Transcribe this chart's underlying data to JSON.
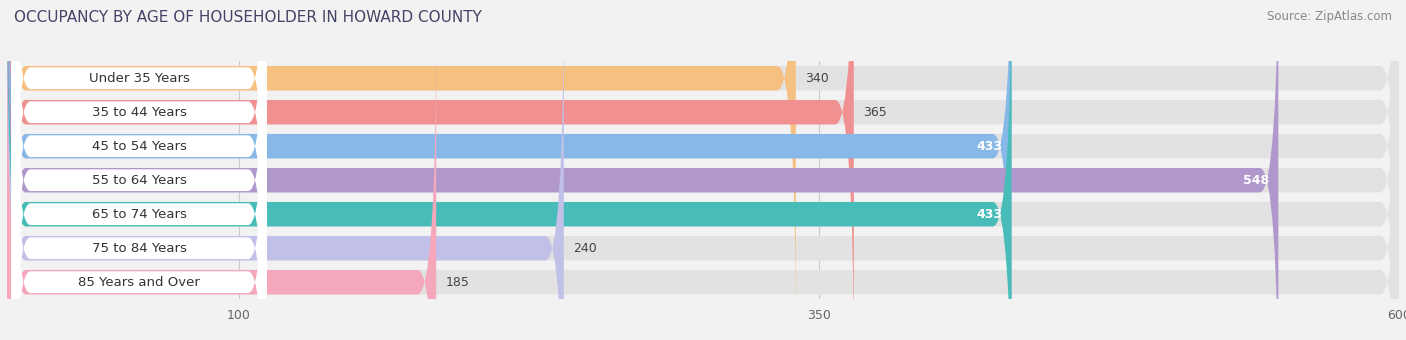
{
  "title": "OCCUPANCY BY AGE OF HOUSEHOLDER IN HOWARD COUNTY",
  "source": "Source: ZipAtlas.com",
  "categories": [
    "Under 35 Years",
    "35 to 44 Years",
    "45 to 54 Years",
    "55 to 64 Years",
    "65 to 74 Years",
    "75 to 84 Years",
    "85 Years and Over"
  ],
  "values": [
    340,
    365,
    433,
    548,
    433,
    240,
    185
  ],
  "bar_colors": [
    "#f5c080",
    "#f09090",
    "#88b8e8",
    "#b098cc",
    "#48bcb8",
    "#c0c0e8",
    "#f5a8bc"
  ],
  "label_colors": [
    "#444444",
    "#444444",
    "#ffffff",
    "#ffffff",
    "#ffffff",
    "#444444",
    "#444444"
  ],
  "value_inside": [
    false,
    false,
    true,
    true,
    true,
    false,
    false
  ],
  "background_color": "#f2f2f2",
  "bar_bg_color": "#e2e2e2",
  "xlim_data": [
    0,
    600
  ],
  "data_min": 0,
  "data_max": 600,
  "xticks": [
    100,
    350,
    600
  ],
  "title_fontsize": 11,
  "label_fontsize": 9.5,
  "value_fontsize": 9
}
